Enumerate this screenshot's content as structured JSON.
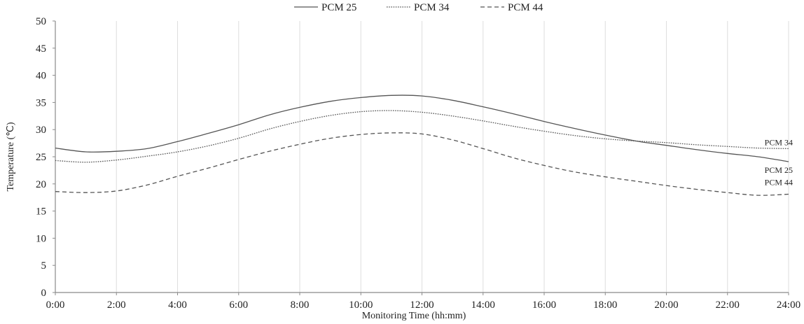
{
  "chart_data": {
    "type": "line",
    "xlabel": "Monitoring  Time  (hh:mm)",
    "ylabel": "Temperature  (℃)",
    "xlim": [
      0,
      24
    ],
    "ylim": [
      0,
      50
    ],
    "x_ticks": [
      "0:00",
      "2:00",
      "4:00",
      "6:00",
      "8:00",
      "10:00",
      "12:00",
      "14:00",
      "16:00",
      "18:00",
      "20:00",
      "22:00",
      "24:00"
    ],
    "y_ticks": [
      "0",
      "5",
      "10",
      "15",
      "20",
      "25",
      "30",
      "35",
      "40",
      "45",
      "50"
    ],
    "grid": "vertical",
    "legend_position": "top",
    "x": [
      0,
      1,
      2,
      3,
      4,
      5,
      6,
      7,
      8,
      9,
      10,
      11,
      12,
      13,
      14,
      15,
      16,
      17,
      18,
      19,
      20,
      21,
      22,
      23,
      24
    ],
    "series": [
      {
        "name": "PCM 25",
        "end_label": "PCM 25",
        "style": "solid",
        "color": "#555555",
        "values": [
          26.6,
          25.9,
          26.0,
          26.5,
          27.8,
          29.3,
          30.9,
          32.7,
          34.1,
          35.2,
          35.9,
          36.3,
          36.2,
          35.4,
          34.2,
          32.9,
          31.5,
          30.2,
          29.0,
          27.9,
          27.1,
          26.3,
          25.6,
          25.0,
          24.1
        ]
      },
      {
        "name": "PCM 34",
        "end_label": "PCM 34",
        "style": "dotted",
        "color": "#555555",
        "values": [
          24.3,
          24.0,
          24.4,
          25.1,
          25.9,
          27.0,
          28.4,
          30.1,
          31.5,
          32.6,
          33.3,
          33.5,
          33.2,
          32.5,
          31.6,
          30.6,
          29.7,
          28.9,
          28.3,
          27.9,
          27.6,
          27.2,
          26.9,
          26.6,
          26.5
        ]
      },
      {
        "name": "PCM 44",
        "end_label": "PCM 44",
        "style": "dashed",
        "color": "#555555",
        "values": [
          18.6,
          18.4,
          18.7,
          19.8,
          21.4,
          22.9,
          24.5,
          26.0,
          27.3,
          28.4,
          29.1,
          29.4,
          29.2,
          28.1,
          26.5,
          24.8,
          23.4,
          22.2,
          21.3,
          20.5,
          19.7,
          19.0,
          18.4,
          17.9,
          18.1
        ]
      }
    ]
  }
}
